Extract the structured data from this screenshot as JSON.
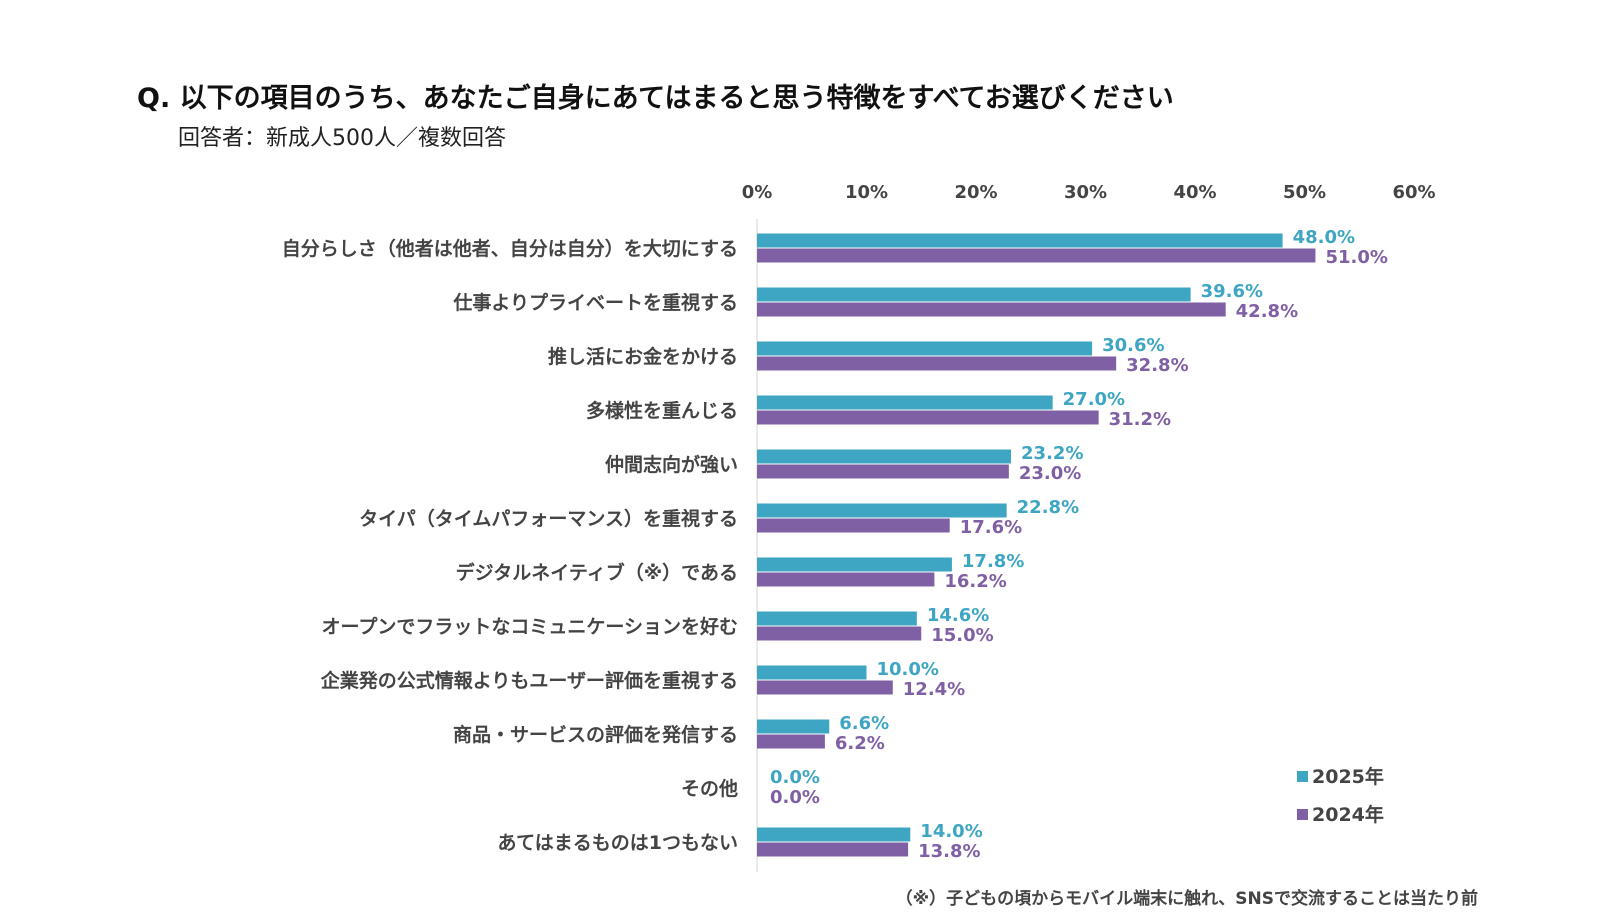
{
  "header": {
    "title": "Q. 以下の項目のうち、あなたご自身にあてはまると思う特徴をすべてお選びください",
    "subtitle": "回答者：新成人500人／複数回答"
  },
  "footnote": "（※）子どもの頃からモバイル端末に触れ、SNSで交流することは当たり前",
  "chart_data": {
    "type": "bar",
    "orientation": "horizontal",
    "title": "Q. 以下の項目のうち、あなたご自身にあてはまると思う特徴をすべてお選びください",
    "subtitle": "回答者：新成人500人／複数回答",
    "xlabel": "",
    "ylabel": "",
    "xlim": [
      0,
      60
    ],
    "ticks": [
      0,
      10,
      20,
      30,
      40,
      50,
      60
    ],
    "tick_labels": [
      "0%",
      "10%",
      "20%",
      "30%",
      "40%",
      "50%",
      "60%"
    ],
    "grid": false,
    "legend_position": "bottom-right",
    "categories": [
      "自分らしさ（他者は他者、自分は自分）を大切にする",
      "仕事よりプライベートを重視する",
      "推し活にお金をかける",
      "多様性を重んじる",
      "仲間志向が強い",
      "タイパ（タイムパフォーマンス）を重視する",
      "デジタルネイティブ（※）である",
      "オープンでフラットなコミュニケーションを好む",
      "企業発の公式情報よりもユーザー評価を重視する",
      "商品・サービスの評価を発信する",
      "その他",
      "あてはまるものは1つもない"
    ],
    "series": [
      {
        "name": "2025年",
        "color": "#3EA6C2",
        "values": [
          48.0,
          39.6,
          30.6,
          27.0,
          23.2,
          22.8,
          17.8,
          14.6,
          10.0,
          6.6,
          0.0,
          14.0
        ],
        "labels": [
          "48.0%",
          "39.6%",
          "30.6%",
          "27.0%",
          "23.2%",
          "22.8%",
          "17.8%",
          "14.6%",
          "10.0%",
          "6.6%",
          "0.0%",
          "14.0%"
        ]
      },
      {
        "name": "2024年",
        "color": "#7F60A4",
        "values": [
          51.0,
          42.8,
          32.8,
          31.2,
          23.0,
          17.6,
          16.2,
          15.0,
          12.4,
          6.2,
          0.0,
          13.8
        ],
        "labels": [
          "51.0%",
          "42.8%",
          "32.8%",
          "31.2%",
          "23.0%",
          "17.6%",
          "16.2%",
          "15.0%",
          "12.4%",
          "6.2%",
          "0.0%",
          "13.8%"
        ]
      }
    ]
  }
}
